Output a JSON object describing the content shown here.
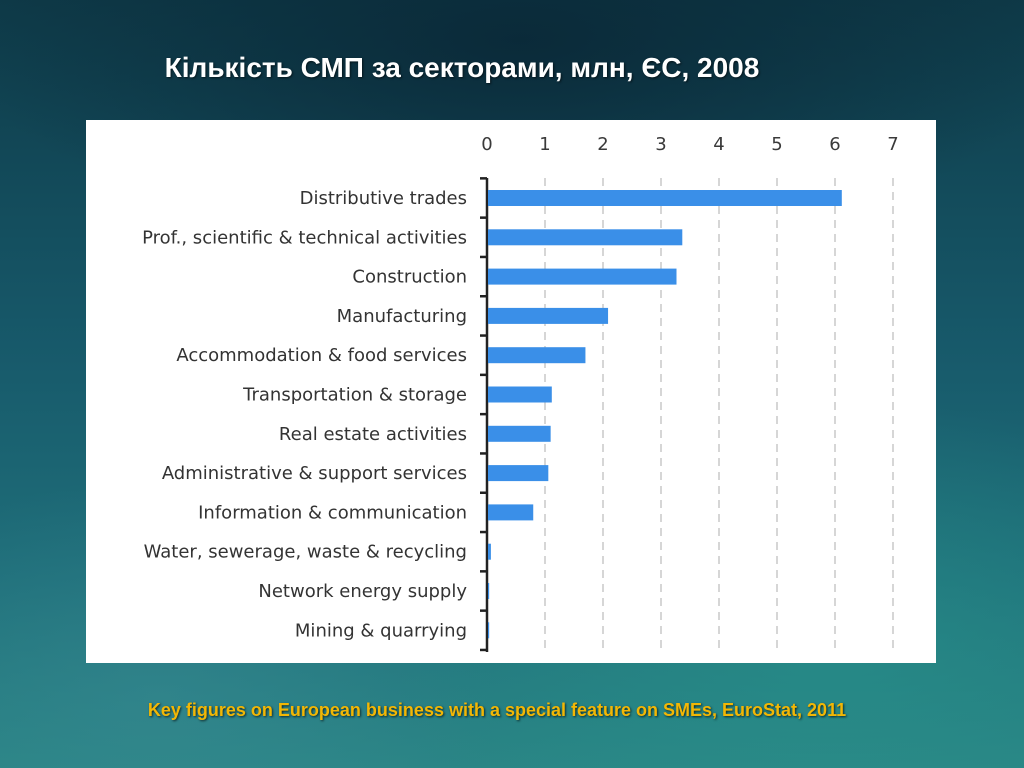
{
  "slide": {
    "title": "Кількість СМП за секторами, млн, ЄС, 2008",
    "source": "Key figures on European business with a special feature on SMEs, EuroStat, 2011"
  },
  "chart_data": {
    "type": "bar",
    "orientation": "horizontal",
    "categories": [
      "Distributive trades",
      "Prof., scientific & technical activities",
      "Construction",
      "Manufacturing",
      "Accommodation & food services",
      "Transportation & storage",
      "Real estate activities",
      "Administrative & support services",
      "Information & communication",
      "Water, sewerage, waste & recycling",
      "Network energy supply",
      "Mining & quarrying"
    ],
    "values": [
      6.1,
      3.35,
      3.25,
      2.07,
      1.68,
      1.1,
      1.08,
      1.04,
      0.78,
      0.05,
      0.02,
      0.02
    ],
    "xlim": [
      0,
      7
    ],
    "xticks": [
      "0",
      "1",
      "2",
      "3",
      "4",
      "5",
      "6",
      "7"
    ],
    "xaxis_position": "top",
    "grid": "vertical dashed",
    "bar_color": "#3a8fe8",
    "grid_color": "#c8c8c8"
  }
}
